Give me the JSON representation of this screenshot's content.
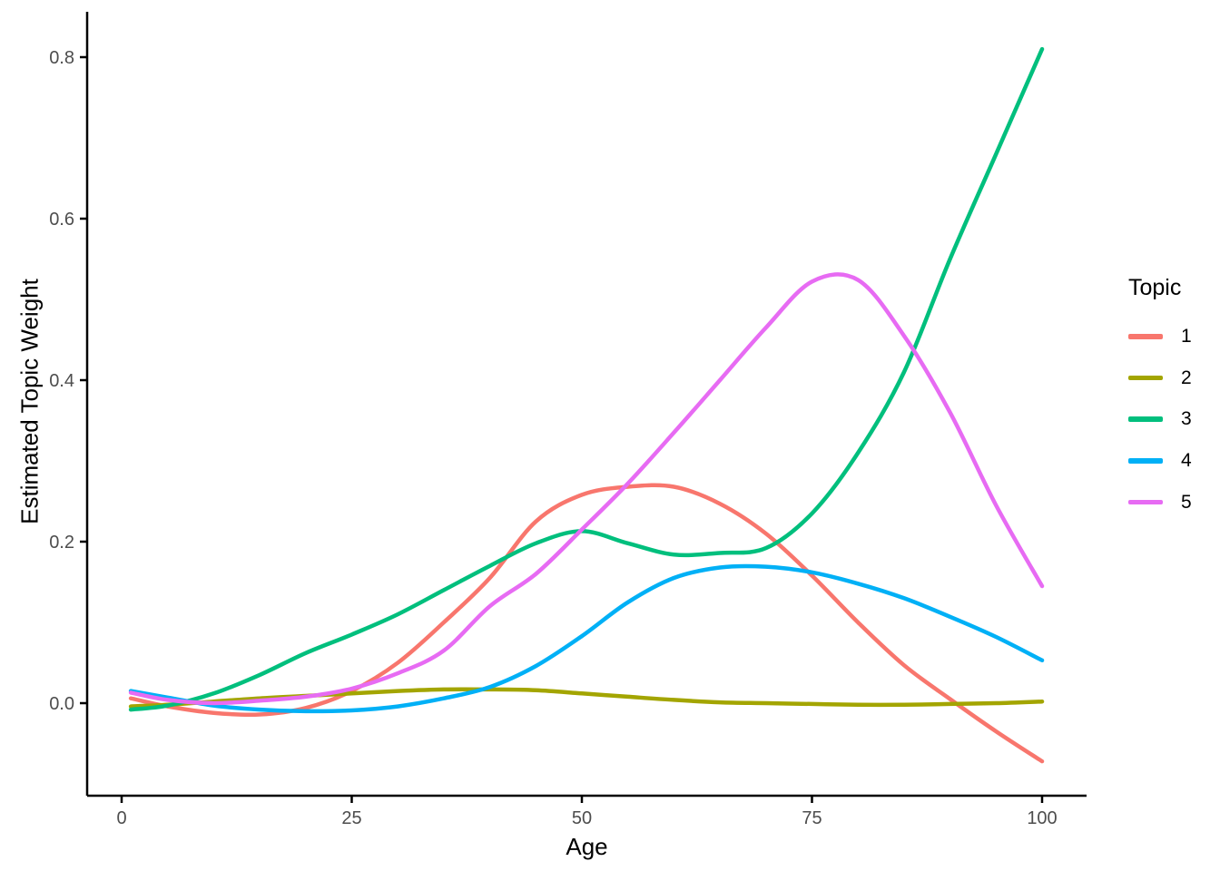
{
  "chart_data": {
    "type": "line",
    "title": "",
    "xlabel": "Age",
    "ylabel": "Estimated Topic Weight",
    "legend_title": "Topic",
    "legend_position": "right",
    "grid": false,
    "background": "#ffffff",
    "axis_color": "#000000",
    "tick_label_color": "#4d4d4d",
    "xlim": [
      0,
      100
    ],
    "ylim": [
      -0.09,
      0.84
    ],
    "xticks": [
      0,
      25,
      50,
      75,
      100
    ],
    "xtick_labels": [
      "0",
      "25",
      "50",
      "75",
      "100"
    ],
    "yticks": [
      0.0,
      0.2,
      0.4,
      0.6,
      0.8
    ],
    "ytick_labels": [
      "0.0",
      "0.2",
      "0.4",
      "0.6",
      "0.8"
    ],
    "x": [
      1,
      5,
      10,
      15,
      20,
      25,
      30,
      35,
      40,
      45,
      50,
      55,
      60,
      65,
      70,
      75,
      80,
      85,
      90,
      95,
      100
    ],
    "series": [
      {
        "name": "1",
        "color": "#F8766D",
        "values": [
          0.006,
          -0.004,
          -0.012,
          -0.014,
          -0.006,
          0.015,
          0.05,
          0.1,
          0.155,
          0.225,
          0.258,
          0.268,
          0.268,
          0.247,
          0.21,
          0.158,
          0.1,
          0.047,
          0.005,
          -0.035,
          -0.072
        ]
      },
      {
        "name": "2",
        "color": "#A3A500",
        "values": [
          -0.004,
          -0.002,
          0.002,
          0.006,
          0.009,
          0.012,
          0.015,
          0.017,
          0.017,
          0.016,
          0.012,
          0.008,
          0.004,
          0.001,
          0.0,
          -0.001,
          -0.002,
          -0.002,
          -0.001,
          0.0,
          0.002
        ]
      },
      {
        "name": "3",
        "color": "#00BF7D",
        "values": [
          -0.008,
          -0.003,
          0.012,
          0.035,
          0.062,
          0.085,
          0.11,
          0.14,
          0.17,
          0.198,
          0.213,
          0.198,
          0.184,
          0.186,
          0.192,
          0.235,
          0.31,
          0.41,
          0.55,
          0.68,
          0.81
        ]
      },
      {
        "name": "4",
        "color": "#00B0F6",
        "values": [
          0.015,
          0.007,
          -0.003,
          -0.008,
          -0.01,
          -0.009,
          -0.004,
          0.006,
          0.02,
          0.046,
          0.083,
          0.125,
          0.155,
          0.168,
          0.169,
          0.162,
          0.148,
          0.13,
          0.107,
          0.082,
          0.053
        ]
      },
      {
        "name": "5",
        "color": "#E76BF3",
        "values": [
          0.013,
          0.004,
          0.0,
          0.003,
          0.008,
          0.018,
          0.037,
          0.065,
          0.12,
          0.16,
          0.215,
          0.272,
          0.335,
          0.4,
          0.465,
          0.522,
          0.524,
          0.455,
          0.36,
          0.245,
          0.145
        ]
      }
    ]
  }
}
